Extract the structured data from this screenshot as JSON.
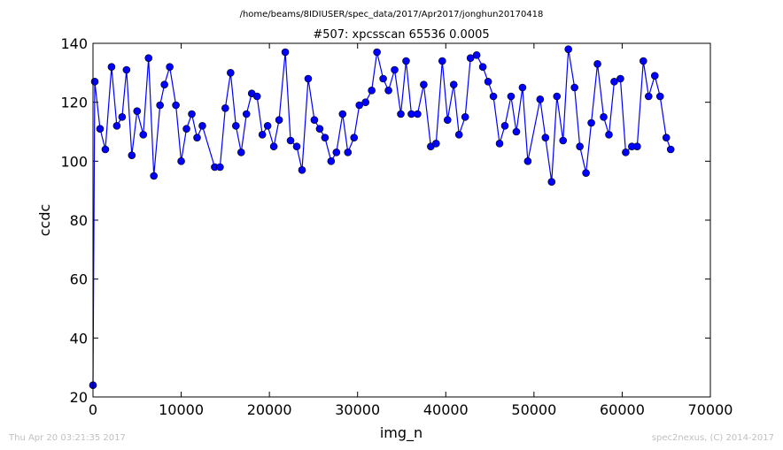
{
  "chart_data": {
    "type": "line",
    "subtitle": "/home/beams/8IDIUSER/spec_data/2017/Apr2017/jonghun20170418",
    "title": "#507: xpcsscan 65536 0.0005",
    "xlabel": "img_n",
    "ylabel": "ccdc",
    "footer_left": "Thu Apr 20 03:21:35 2017",
    "footer_right": "spec2nexus, (C) 2014-2017",
    "color": "#0000ff",
    "xlim": [
      0,
      70000
    ],
    "xticks": [
      0,
      10000,
      20000,
      30000,
      40000,
      50000,
      60000,
      70000
    ],
    "ylim": [
      20,
      140
    ],
    "yticks": [
      20,
      40,
      60,
      80,
      100,
      120,
      140
    ],
    "x": [
      0,
      200,
      800,
      1400,
      2100,
      2700,
      3300,
      3800,
      4400,
      5000,
      5700,
      6300,
      6900,
      7600,
      8100,
      8700,
      9400,
      10000,
      10600,
      11200,
      11800,
      12400,
      13800,
      14400,
      15000,
      15600,
      16200,
      16800,
      17400,
      18000,
      18600,
      19200,
      19800,
      20500,
      21100,
      21800,
      22400,
      23100,
      23700,
      24400,
      25100,
      25700,
      26300,
      27000,
      27600,
      28300,
      28900,
      29600,
      30200,
      30900,
      31600,
      32200,
      32900,
      33500,
      34200,
      34900,
      35500,
      36100,
      36800,
      37500,
      38300,
      38900,
      39600,
      40200,
      40900,
      41500,
      42200,
      42800,
      43500,
      44200,
      44800,
      45400,
      46100,
      46700,
      47400,
      48000,
      48700,
      49300,
      50700,
      51300,
      52000,
      52600,
      53300,
      53900,
      54600,
      55200,
      55900,
      56500,
      57200,
      57900,
      58500,
      59100,
      59800,
      60400,
      61100,
      61700,
      62400,
      63000,
      63700,
      64300,
      65000,
      65500
    ],
    "values": [
      24,
      127,
      111,
      104,
      132,
      112,
      115,
      131,
      102,
      117,
      109,
      135,
      95,
      119,
      126,
      132,
      119,
      100,
      111,
      116,
      108,
      112,
      98,
      98,
      118,
      130,
      112,
      103,
      116,
      123,
      122,
      109,
      112,
      105,
      114,
      137,
      107,
      105,
      97,
      128,
      114,
      111,
      108,
      100,
      103,
      116,
      103,
      108,
      119,
      120,
      124,
      137,
      128,
      124,
      131,
      116,
      134,
      116,
      116,
      126,
      105,
      106,
      134,
      114,
      126,
      109,
      115,
      135,
      136,
      132,
      127,
      122,
      106,
      112,
      122,
      110,
      125,
      100,
      121,
      108,
      93,
      122,
      107,
      138,
      125,
      105,
      96,
      113,
      133,
      115,
      109,
      127,
      128,
      103,
      105,
      105,
      134,
      122,
      129,
      122,
      108,
      104
    ]
  }
}
